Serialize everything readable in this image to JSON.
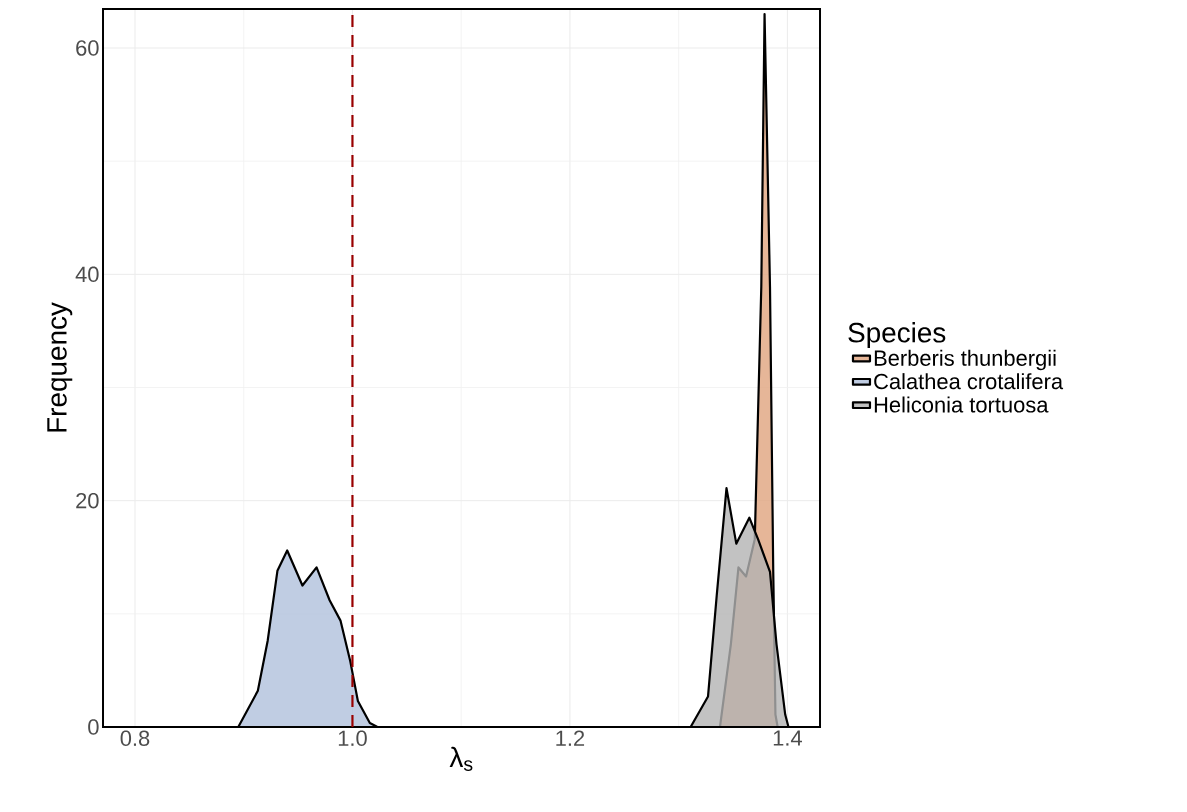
{
  "chart_data": {
    "type": "area",
    "xlabel": "λ$_{s}$",
    "ylabel": "Frequency",
    "legend_title": "Species",
    "legend": "right",
    "grid": true,
    "xlim": [
      0.7706,
      1.43
    ],
    "ylim": [
      0,
      63.45
    ],
    "xticks": [
      {
        "value": 0.8,
        "label": "0.8"
      },
      {
        "value": 1.0,
        "label": "1.0"
      },
      {
        "value": 1.2,
        "label": "1.2"
      },
      {
        "value": 1.4,
        "label": "1.4"
      }
    ],
    "yticks": [
      0,
      20,
      40,
      60
    ],
    "ref_lines": [
      {
        "axis": "x",
        "value": 1.0,
        "color": "#990000",
        "line_style": "dashed"
      }
    ],
    "series": [
      {
        "name": "Berberis thunbergii",
        "color": "#e0a47e",
        "x": [
          0.8,
          1.338,
          1.348,
          1.355,
          1.362,
          1.37,
          1.376,
          1.379,
          1.384,
          1.387,
          1.389,
          1.391,
          1.4
        ],
        "values": [
          0,
          0,
          7.3,
          14.1,
          13.3,
          16.6,
          38.9,
          63,
          38.9,
          13.7,
          1.1,
          0,
          0
        ]
      },
      {
        "name": "Calathea crotalifera",
        "color": "#b0c0dc",
        "x": [
          0.8,
          0.895,
          0.913,
          0.922,
          0.931,
          0.94,
          0.954,
          0.967,
          0.979,
          0.989,
          0.998,
          1.005,
          1.016,
          1.023,
          1.4
        ],
        "values": [
          0,
          0,
          3.2,
          7.6,
          13.8,
          15.6,
          12.5,
          14.1,
          11.2,
          9.4,
          5.8,
          2.3,
          0.35,
          0,
          0
        ]
      },
      {
        "name": "Heliconia tortuosa",
        "color": "#b3b3b3",
        "x": [
          0.8,
          1.311,
          1.327,
          1.335,
          1.344,
          1.353,
          1.365,
          1.373,
          1.384,
          1.39,
          1.398,
          1.401
        ],
        "values": [
          0,
          0,
          2.7,
          11.6,
          21.1,
          16.2,
          18.5,
          16.6,
          13.7,
          7.3,
          1.1,
          0
        ]
      }
    ]
  }
}
